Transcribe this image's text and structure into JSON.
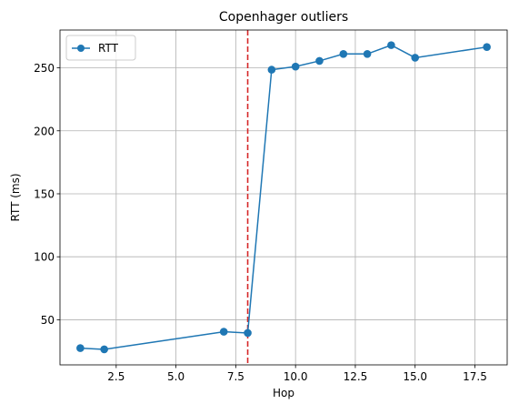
{
  "chart_data": {
    "type": "line",
    "title": "Copenhager outliers",
    "xlabel": "Hop",
    "ylabel": "RTT (ms)",
    "xlim": [
      0.15,
      18.85
    ],
    "ylim": [
      14.2,
      280.0
    ],
    "xticks": [
      2.5,
      5.0,
      7.5,
      10.0,
      12.5,
      15.0,
      17.5
    ],
    "xtick_labels": [
      "2.5",
      "5.0",
      "7.5",
      "10.0",
      "12.5",
      "15.0",
      "17.5"
    ],
    "yticks": [
      50,
      100,
      150,
      200,
      250
    ],
    "ytick_labels": [
      "50",
      "100",
      "150",
      "200",
      "250"
    ],
    "grid": true,
    "legend_position": "upper-left",
    "series": [
      {
        "name": "RTT",
        "color": "#1f77b4",
        "marker": "circle",
        "x": [
          1,
          2,
          7,
          8,
          9,
          10,
          11,
          12,
          13,
          14,
          15,
          18
        ],
        "y": [
          27.5,
          26.5,
          40.5,
          39.5,
          248.5,
          251.0,
          255.5,
          261.0,
          261.0,
          268.0,
          258.0,
          266.5
        ]
      }
    ],
    "annotations": [
      {
        "type": "vertical-line",
        "x": 8,
        "color": "#d62728",
        "style": "dashed"
      }
    ]
  }
}
